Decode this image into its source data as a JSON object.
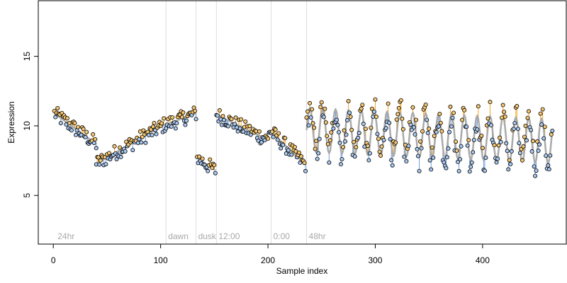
{
  "chart_data": {
    "type": "scatter",
    "title": "",
    "xlabel": "Sample index",
    "ylabel": "Expression",
    "xlim": [
      -14,
      478
    ],
    "ylim": [
      1.5,
      19.0
    ],
    "x_ticks": [
      0,
      100,
      200,
      300,
      400
    ],
    "y_ticks": [
      5,
      10,
      15
    ],
    "grid": false,
    "legend": "none",
    "colors": {
      "fit_line": "#aaaaaa",
      "residual_above": "#f5a623",
      "residual_below": "#6f9fe0",
      "point_above": "#f7c873",
      "point_below": "#a9c8f0",
      "point_edge": "#000000",
      "region_line": "#dddddd",
      "region_text": "#a8a8a8"
    },
    "regions": [
      {
        "label": "24hr",
        "x": 2
      },
      {
        "label": "dawn",
        "x": 105
      },
      {
        "label": "dusk",
        "x": 133
      },
      {
        "label": "12:00",
        "x": 152
      },
      {
        "label": "0:00",
        "x": 203
      },
      {
        "label": "48hr",
        "x": 236
      }
    ],
    "segments": [
      {
        "type": "linear",
        "x0": 1,
        "x1": 40,
        "y0": 10.9,
        "y1": 8.7
      },
      {
        "type": "linear",
        "x0": 40,
        "x1": 104,
        "y0": 7.3,
        "y1": 10.1
      },
      {
        "type": "linear",
        "x0": 105,
        "x1": 133,
        "y0": 10.1,
        "y1": 10.9
      },
      {
        "type": "linear",
        "x0": 134,
        "x1": 151,
        "y0": 7.7,
        "y1": 6.8
      },
      {
        "type": "linear",
        "x0": 152,
        "x1": 200,
        "y0": 10.8,
        "y1": 9.0
      },
      {
        "type": "linear",
        "x0": 201,
        "x1": 235,
        "y0": 9.7,
        "y1": 7.2
      },
      {
        "type": "wave",
        "x0": 236,
        "x1": 465,
        "base0": 9.7,
        "base1": 8.9,
        "amp": 1.6,
        "period": 12
      }
    ]
  }
}
